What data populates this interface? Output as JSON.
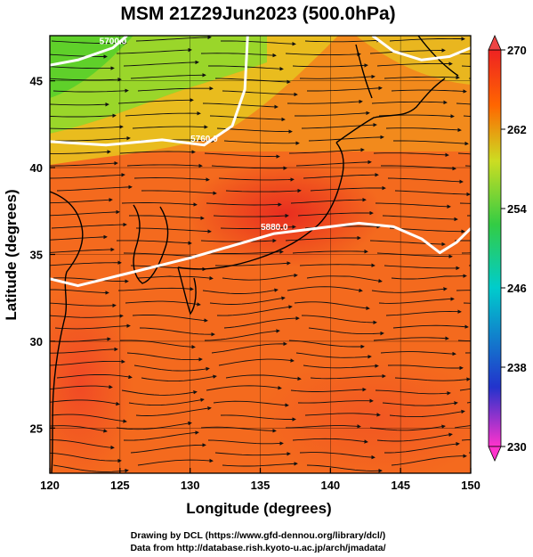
{
  "chart_data": {
    "type": "heatmap",
    "title": "MSM 21Z29Jun2023 (500.0hPa)",
    "xlabel": "Longitude (degrees)",
    "ylabel": "Latitude  (degrees)",
    "xlim": [
      120,
      150
    ],
    "ylim": [
      22.4,
      47.6
    ],
    "x_ticks": [
      "120",
      "125",
      "130",
      "135",
      "140",
      "145",
      "150"
    ],
    "y_ticks": [
      "25",
      "30",
      "35",
      "40",
      "45"
    ],
    "grid": true,
    "colorbar": {
      "range": [
        230,
        270
      ],
      "ticks": [
        "270",
        "262",
        "254",
        "246",
        "238",
        "230"
      ],
      "colors": [
        "#ff33cc",
        "#2233cc",
        "#00cccc",
        "#33cc44",
        "#ccdd22",
        "#ff6600",
        "#ee2222"
      ]
    },
    "contours": [
      {
        "label": "5700.0",
        "points": [
          [
            120,
            45.9
          ],
          [
            122,
            46.2
          ],
          [
            124.5,
            46.9
          ],
          [
            125.5,
            47.6
          ]
        ]
      },
      {
        "label": "5760.0",
        "points": [
          [
            120,
            41.5
          ],
          [
            124,
            41.3
          ],
          [
            128,
            41.6
          ],
          [
            131,
            41.3
          ],
          [
            133,
            42.4
          ],
          [
            133.9,
            44.5
          ],
          [
            134.1,
            47.6
          ]
        ]
      },
      {
        "label": "",
        "points": [
          [
            143,
            47.6
          ],
          [
            144.5,
            46.7
          ],
          [
            146.5,
            46.2
          ],
          [
            148.5,
            46.4
          ],
          [
            150,
            46.9
          ]
        ]
      },
      {
        "label": "5880.0",
        "points": [
          [
            120,
            33.6
          ],
          [
            122,
            33.2
          ],
          [
            124,
            33.6
          ],
          [
            126,
            34.0
          ],
          [
            128,
            34.4
          ],
          [
            130,
            34.8
          ],
          [
            133,
            35.5
          ],
          [
            136,
            36.2
          ],
          [
            139,
            36.5
          ],
          [
            142,
            36.8
          ],
          [
            144.5,
            36.6
          ],
          [
            146.5,
            35.9
          ],
          [
            147.8,
            35.1
          ],
          [
            149,
            35.7
          ],
          [
            150,
            36.5
          ]
        ]
      }
    ]
  },
  "footer": {
    "line1": "Drawing by DCL (https://www.gfd-dennou.org/library/dcl/)",
    "line2": "Data from http://database.rish.kyoto-u.ac.jp/arch/jmadata/"
  }
}
